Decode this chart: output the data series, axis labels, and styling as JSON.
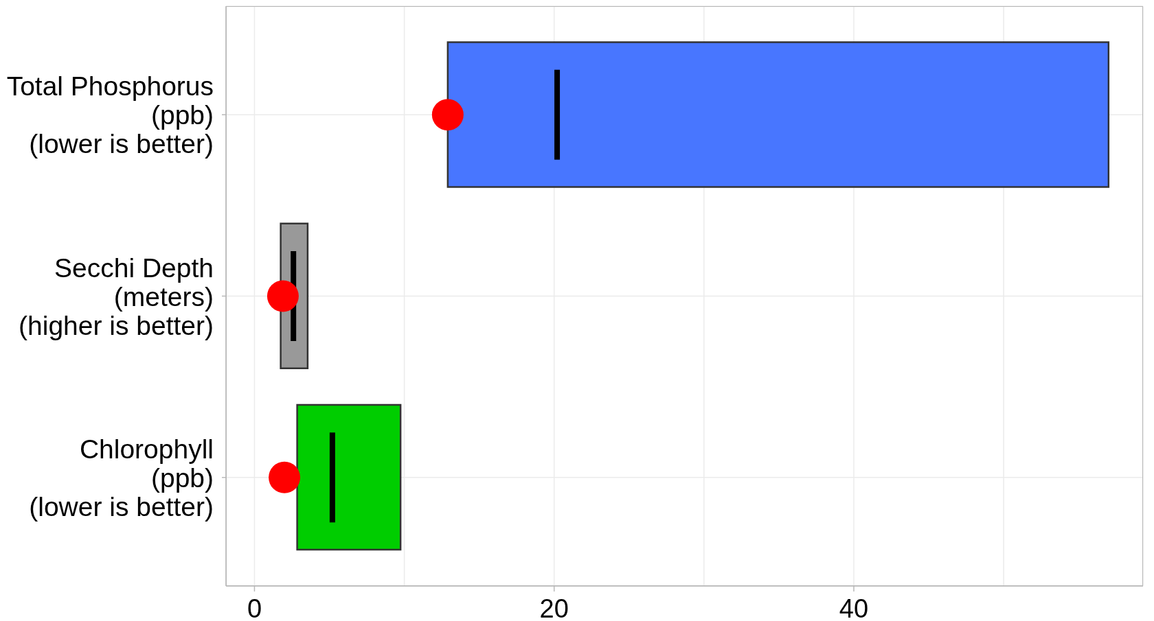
{
  "chart_data": {
    "type": "bar",
    "orientation": "horizontal",
    "categories": [
      "Total Phosphorus\n(ppb)\n(lower is better)",
      "Secchi Depth\n(meters)\n(higher is better)",
      "Chlorophyll\n(ppb)\n(lower is better)"
    ],
    "series": [
      {
        "base": [
          12.9,
          1.75,
          2.85
        ],
        "values": [
          44.1,
          1.8,
          6.9
        ],
        "colors": [
          "#4876ff",
          "#999999",
          "#00cd00"
        ]
      },
      {
        "type": "box",
        "boxes": [
          {
            "low": 20.2,
            "q1": 20.2,
            "median": 20.2,
            "q3": 20.2,
            "high": 20.2
          },
          {
            "low": 2.6,
            "q1": 2.6,
            "median": 2.6,
            "q3": 2.6,
            "high": 2.6
          },
          {
            "low": 5.2,
            "q1": 5.2,
            "median": 5.2,
            "q3": 5.2,
            "high": 5.2
          }
        ],
        "color": "#000000"
      },
      {
        "type": "scatter",
        "x": [
          "Total Phosphorus\n(ppb)\n(lower is better)",
          "Secchi Depth\n(meters)\n(higher is better)",
          "Chlorophyll\n(ppb)\n(lower is better)"
        ],
        "values": [
          12.9,
          1.9,
          2.0
        ],
        "color": "#ff0000",
        "marker": "circle"
      }
    ],
    "xlim": [
      -1.9,
      59.3
    ],
    "xticks": [
      0,
      {
        "value": 10,
        "label": null
      },
      20,
      {
        "value": 30,
        "label": null
      },
      40,
      {
        "value": 50,
        "label": null
      }
    ],
    "grid": true
  }
}
